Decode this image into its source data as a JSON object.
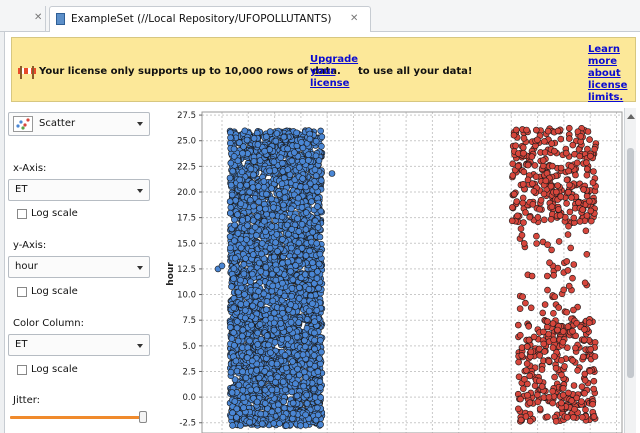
{
  "tabs": {
    "active_title": "ExampleSet (//Local Repository/UFOPOLLUTANTS)",
    "close_glyph": "✕"
  },
  "banner": {
    "message": "Your license only supports up to 10,000 rows of data.",
    "upgrade_link": "Upgrade your license",
    "message_suffix": "to use all your data!",
    "learn_link": "Learn more about license limits.",
    "icon": "warning-barrier-icon"
  },
  "controls": {
    "plot_type": "Scatter",
    "x_axis_label": "x-Axis:",
    "x_axis_value": "ET",
    "x_log_label": "Log scale",
    "y_axis_label": "y-Axis:",
    "y_axis_value": "hour",
    "y_log_label": "Log scale",
    "color_label": "Color Column:",
    "color_value": "ET",
    "color_log_label": "Log scale",
    "jitter_label": "Jitter:",
    "jitter_level": 0.97
  },
  "chart_data": {
    "type": "scatter",
    "ylabel": "hour",
    "ylim": [
      -3.5,
      27.8
    ],
    "y_ticks": [
      "-2.5",
      "0.0",
      "2.5",
      "5.0",
      "7.5",
      "10.0",
      "12.5",
      "15.0",
      "17.5",
      "20.0",
      "22.5",
      "25.0",
      "27.5"
    ],
    "grid": true,
    "series": [
      {
        "color": "#4a86d4",
        "point_count": 3600,
        "y_min": -2.8,
        "y_max": 26
      },
      {
        "color": "#d6463c",
        "point_count": 700,
        "y_min": -2.5,
        "y_max": 26.5
      }
    ]
  }
}
